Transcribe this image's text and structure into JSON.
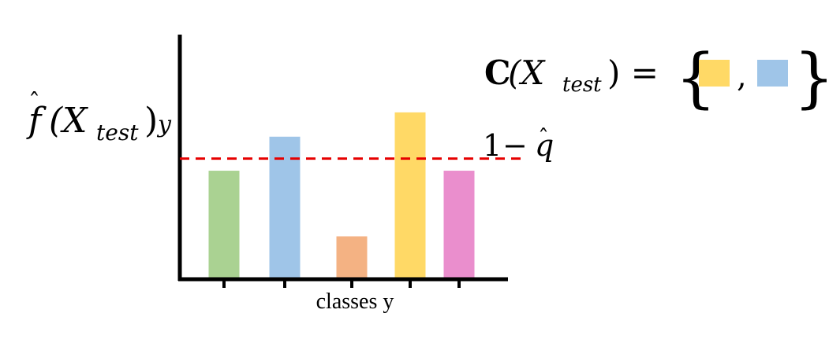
{
  "chart_data": {
    "type": "bar",
    "categories": [
      "green",
      "blue",
      "orange",
      "yellow",
      "pink"
    ],
    "values": [
      0.44,
      0.58,
      0.17,
      0.68,
      0.44
    ],
    "colors": [
      "#aad292",
      "#9fc5e8",
      "#f4b283",
      "#ffd966",
      "#ea8ecd"
    ],
    "ylim": [
      0,
      1
    ],
    "threshold": 0.49,
    "threshold_color": "#e60000",
    "xlabel": "classes y",
    "ylabel": {
      "f": "f",
      "hat": "ˆ",
      "open": "(X",
      "sub": "test",
      "close": ")",
      "suffix": "y"
    },
    "threshold_label": {
      "one": "1",
      "minus": "−",
      "q": "q",
      "hat": "ˆ"
    },
    "set": {
      "C": "C",
      "args": "(X",
      "sub": "test",
      "close": ") =",
      "lbrace": "{",
      "comma": ",",
      "rbrace": "}",
      "member_colors": [
        "#ffd966",
        "#9fc5e8"
      ]
    }
  }
}
